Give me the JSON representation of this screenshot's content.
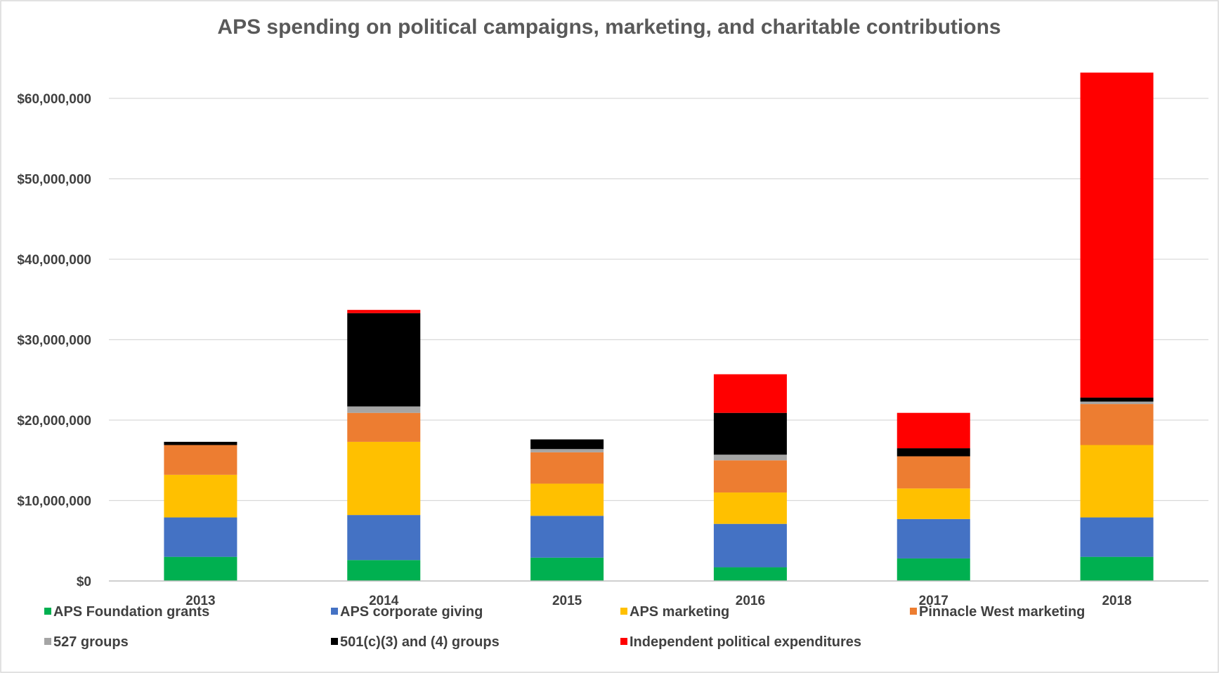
{
  "chart_data": {
    "type": "bar",
    "stacked": true,
    "title": "APS spending on political campaigns, marketing, and charitable contributions",
    "xlabel": "",
    "ylabel": "",
    "ylim": [
      0,
      70000000
    ],
    "y_ticks": [
      0,
      10000000,
      20000000,
      30000000,
      40000000,
      50000000,
      60000000
    ],
    "y_tick_labels": [
      "$0",
      "$10,000,000",
      "$20,000,000",
      "$30,000,000",
      "$40,000,000",
      "$50,000,000",
      "$60,000,000"
    ],
    "grid": true,
    "legend_position": "bottom",
    "categories": [
      "2013",
      "2014",
      "2015",
      "2016",
      "2017",
      "2018"
    ],
    "series": [
      {
        "name": "APS Foundation grants",
        "color": "#00b050",
        "values": [
          3000000,
          2600000,
          2900000,
          1700000,
          2800000,
          3000000
        ]
      },
      {
        "name": "APS corporate giving",
        "color": "#4472c4",
        "values": [
          4900000,
          5600000,
          5200000,
          5400000,
          4900000,
          4900000
        ]
      },
      {
        "name": "APS marketing",
        "color": "#ffc000",
        "values": [
          5300000,
          9100000,
          4000000,
          3900000,
          3800000,
          9000000
        ]
      },
      {
        "name": "Pinnacle West marketing",
        "color": "#ed7d31",
        "values": [
          3700000,
          3600000,
          3900000,
          4000000,
          4000000,
          5100000
        ]
      },
      {
        "name": "527 groups",
        "color": "#a5a5a5",
        "values": [
          0,
          800000,
          400000,
          700000,
          0,
          300000
        ]
      },
      {
        "name": "501(c)(3) and (4) groups",
        "color": "#000000",
        "values": [
          400000,
          11600000,
          1200000,
          5200000,
          1000000,
          500000
        ]
      },
      {
        "name": "Independent political expenditures",
        "color": "#ff0000",
        "values": [
          0,
          400000,
          0,
          4800000,
          4400000,
          40400000
        ]
      }
    ]
  }
}
